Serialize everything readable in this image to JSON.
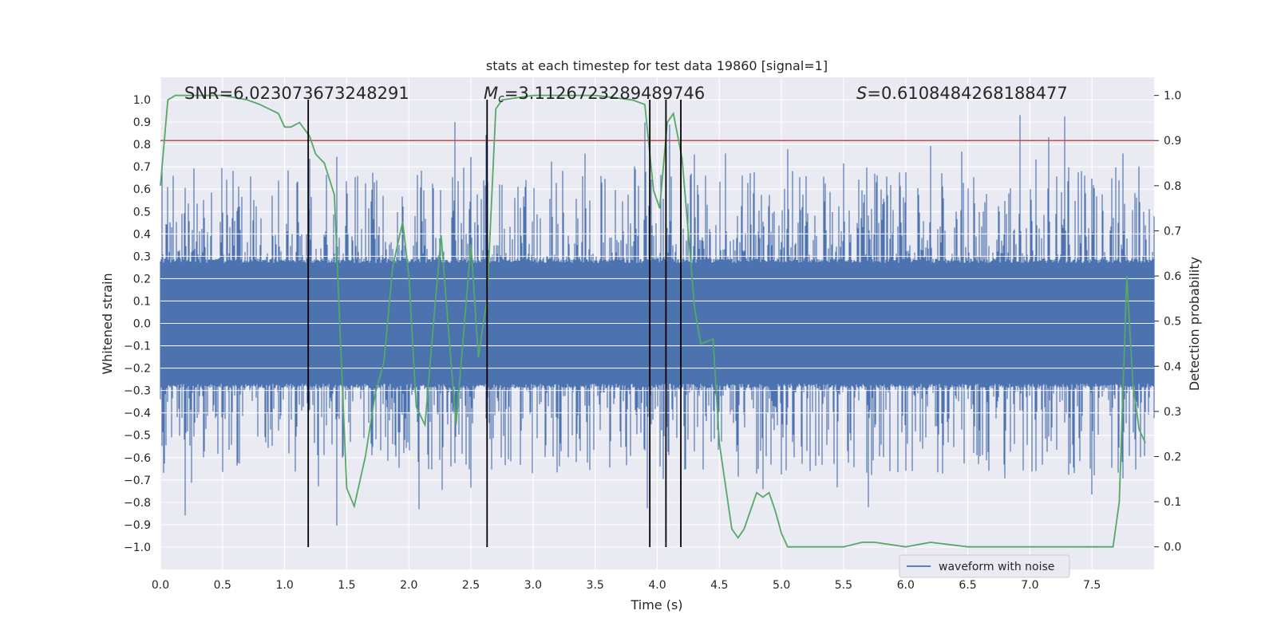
{
  "chart_data": {
    "type": "line",
    "title": "stats at each timestep for test data 19860 [signal=1]",
    "xlabel": "Time (s)",
    "ylabel_left": "Whitened strain",
    "ylabel_right": "Detection probability",
    "xlim": [
      0.0,
      8.0
    ],
    "ylim_left": [
      -1.1,
      1.1
    ],
    "ylim_right": [
      -0.05,
      1.04
    ],
    "x_ticks": [
      "0.0",
      "0.5",
      "1.0",
      "1.5",
      "2.0",
      "2.5",
      "3.0",
      "3.5",
      "4.0",
      "4.5",
      "5.0",
      "5.5",
      "6.0",
      "6.5",
      "7.0",
      "7.5"
    ],
    "y_left_ticks": [
      "1.0",
      "0.9",
      "0.8",
      "0.7",
      "0.6",
      "0.5",
      "0.4",
      "0.3",
      "0.2",
      "0.1",
      "0.0",
      "−0.1",
      "−0.2",
      "−0.3",
      "−0.4",
      "−0.5",
      "−0.6",
      "−0.7",
      "−0.8",
      "−0.9",
      "−1.0"
    ],
    "y_right_ticks": [
      "1.0",
      "0.9",
      "0.8",
      "0.7",
      "0.6",
      "0.5",
      "0.4",
      "0.3",
      "0.2",
      "0.1",
      "0.0"
    ],
    "annotations": {
      "snr": "SNR=6.023073673248291",
      "mc_sym": "M",
      "mc_sub": "c",
      "mc_val": "=3.1126723289489746",
      "s_sym": "S",
      "s_val": "=0.6108484268188477"
    },
    "threshold": {
      "value": 0.9,
      "color": "#c44e52",
      "axis": "right"
    },
    "vlines": [
      1.19,
      2.63,
      3.94,
      4.07,
      4.19
    ],
    "vline_ymin": -1.0,
    "vline_ymax": 1.0,
    "waveform": {
      "name": "waveform with noise",
      "color": "#4c72b0",
      "core_amplitude": 0.27,
      "peaks": [
        [
          0.05,
          0.5
        ],
        [
          0.2,
          0.65
        ],
        [
          0.27,
          0.7
        ],
        [
          0.35,
          0.66
        ],
        [
          0.5,
          0.55
        ],
        [
          0.62,
          0.68
        ],
        [
          0.75,
          0.65
        ],
        [
          0.9,
          0.56
        ],
        [
          1.1,
          0.7
        ],
        [
          1.2,
          0.85
        ],
        [
          1.42,
          0.75
        ],
        [
          1.5,
          0.83
        ],
        [
          1.7,
          0.78
        ],
        [
          1.95,
          0.73
        ],
        [
          2.12,
          0.62
        ],
        [
          2.35,
          0.77
        ],
        [
          2.37,
          0.99
        ],
        [
          2.5,
          0.77
        ],
        [
          2.62,
          0.98
        ],
        [
          2.75,
          0.63
        ],
        [
          2.9,
          0.62
        ],
        [
          3.15,
          0.82
        ],
        [
          3.42,
          0.87
        ],
        [
          3.55,
          0.88
        ],
        [
          3.82,
          0.95
        ],
        [
          3.9,
          0.93
        ],
        [
          4.1,
          0.92
        ],
        [
          4.3,
          0.84
        ],
        [
          4.55,
          0.8
        ],
        [
          4.75,
          0.76
        ],
        [
          4.9,
          0.75
        ],
        [
          5.05,
          0.82
        ],
        [
          5.2,
          0.76
        ],
        [
          5.35,
          0.8
        ],
        [
          5.5,
          0.74
        ],
        [
          5.65,
          0.7
        ],
        [
          5.75,
          0.73
        ],
        [
          5.85,
          0.84
        ],
        [
          6.0,
          0.78
        ],
        [
          6.2,
          0.85
        ],
        [
          6.3,
          0.8
        ],
        [
          6.45,
          0.87
        ],
        [
          6.55,
          0.8
        ],
        [
          6.75,
          0.7
        ],
        [
          6.92,
          0.97
        ],
        [
          7.05,
          0.8
        ],
        [
          7.15,
          0.98
        ],
        [
          7.28,
          0.95
        ],
        [
          7.5,
          0.72
        ],
        [
          7.65,
          0.58
        ],
        [
          7.75,
          0.8
        ],
        [
          7.88,
          0.85
        ]
      ],
      "troughs": [
        [
          0.2,
          -0.92
        ],
        [
          0.25,
          -0.75
        ],
        [
          0.35,
          -0.8
        ],
        [
          0.62,
          -0.86
        ],
        [
          1.27,
          -0.9
        ],
        [
          1.42,
          -0.91
        ],
        [
          1.7,
          -0.77
        ],
        [
          2.08,
          -0.99
        ],
        [
          2.27,
          -0.87
        ],
        [
          2.5,
          -0.76
        ],
        [
          2.9,
          -0.76
        ],
        [
          3.1,
          -0.78
        ],
        [
          3.35,
          -0.76
        ],
        [
          3.62,
          -0.8
        ],
        [
          3.75,
          -0.81
        ],
        [
          3.92,
          -0.85
        ],
        [
          4.05,
          -0.82
        ],
        [
          4.22,
          -0.76
        ],
        [
          4.65,
          -0.84
        ],
        [
          4.85,
          -0.84
        ],
        [
          5.1,
          -0.72
        ],
        [
          5.45,
          -0.8
        ],
        [
          5.7,
          -0.85
        ],
        [
          6.0,
          -0.76
        ],
        [
          6.3,
          -0.78
        ],
        [
          6.55,
          -0.71
        ],
        [
          6.8,
          -0.8
        ],
        [
          7.05,
          -0.72
        ],
        [
          7.4,
          -0.77
        ],
        [
          7.5,
          -0.85
        ],
        [
          7.75,
          -0.73
        ],
        [
          7.85,
          -0.8
        ]
      ]
    },
    "probability": {
      "name": "detection probability",
      "color": "#55a868",
      "x": [
        0.0,
        0.06,
        0.12,
        0.3,
        0.5,
        0.7,
        0.8,
        0.95,
        1.0,
        1.05,
        1.12,
        1.2,
        1.25,
        1.32,
        1.4,
        1.5,
        1.56,
        1.65,
        1.73,
        1.8,
        1.87,
        1.95,
        2.0,
        2.06,
        2.13,
        2.2,
        2.26,
        2.32,
        2.38,
        2.5,
        2.56,
        2.63,
        2.7,
        2.75,
        3.0,
        3.5,
        3.8,
        3.9,
        3.97,
        4.02,
        4.08,
        4.13,
        4.2,
        4.3,
        4.35,
        4.45,
        4.5,
        4.6,
        4.65,
        4.7,
        4.8,
        4.85,
        4.9,
        4.95,
        5.0,
        5.05,
        5.13,
        5.3,
        5.5,
        5.65,
        5.75,
        6.0,
        6.2,
        6.5,
        7.0,
        7.6,
        7.67,
        7.72,
        7.78,
        7.83,
        7.88,
        7.93
      ],
      "y": [
        0.8,
        0.99,
        1.0,
        1.0,
        1.0,
        0.99,
        0.98,
        0.96,
        0.93,
        0.93,
        0.94,
        0.91,
        0.87,
        0.85,
        0.78,
        0.13,
        0.09,
        0.2,
        0.34,
        0.41,
        0.62,
        0.72,
        0.6,
        0.31,
        0.27,
        0.5,
        0.69,
        0.48,
        0.27,
        0.67,
        0.42,
        0.55,
        0.97,
        0.99,
        1.0,
        1.0,
        0.99,
        0.98,
        0.79,
        0.75,
        0.94,
        0.96,
        0.86,
        0.53,
        0.45,
        0.46,
        0.23,
        0.04,
        0.02,
        0.04,
        0.12,
        0.11,
        0.12,
        0.08,
        0.03,
        0.0,
        0.0,
        0.0,
        0.0,
        0.01,
        0.01,
        0.0,
        0.01,
        0.0,
        0.0,
        0.0,
        0.0,
        0.1,
        0.6,
        0.36,
        0.26,
        0.23
      ]
    },
    "grid": true,
    "legend": {
      "location": "lower-center-right",
      "entries": [
        "waveform with noise"
      ]
    }
  }
}
